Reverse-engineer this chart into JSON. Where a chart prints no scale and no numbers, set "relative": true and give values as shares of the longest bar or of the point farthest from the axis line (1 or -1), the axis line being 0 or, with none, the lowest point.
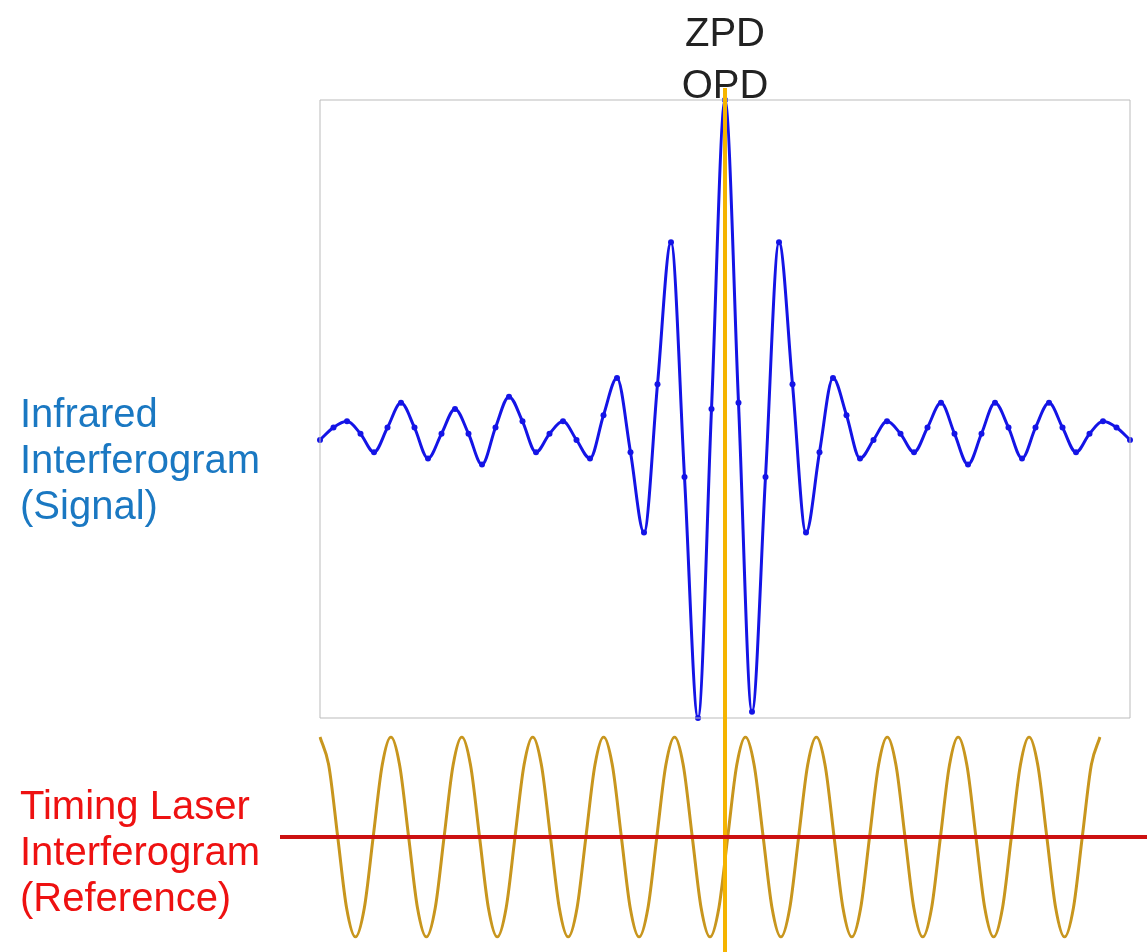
{
  "chart_data": [
    {
      "type": "line",
      "relative": true,
      "ylabel": "Infrared Interferogram (Signal)",
      "marker": "circle",
      "tick_labels": false,
      "categories": [
        null,
        null,
        null,
        null,
        null,
        null,
        null,
        null,
        null,
        null,
        null,
        null,
        null,
        null,
        null,
        null,
        null,
        null,
        null,
        null,
        null,
        null,
        null,
        null,
        null,
        null,
        null,
        null,
        null,
        null,
        null,
        null,
        null,
        null,
        null,
        null,
        null,
        null,
        null,
        null,
        null,
        null,
        null,
        null,
        null,
        null,
        null,
        null,
        null,
        null,
        null,
        null,
        null,
        null,
        null,
        null,
        null,
        null,
        null,
        null,
        null
      ],
      "series": [
        {
          "color": "#1414e6",
          "values": [
            0.45,
            0.47,
            0.48,
            0.46,
            0.43,
            0.47,
            0.51,
            0.47,
            0.42,
            0.46,
            0.5,
            0.46,
            0.41,
            0.47,
            0.52,
            0.48,
            0.43,
            0.46,
            0.48,
            0.45,
            0.42,
            0.49,
            0.55,
            0.43,
            0.3,
            0.54,
            0.77,
            0.39,
            0,
            0.5,
            1,
            0.51,
            0.01,
            0.39,
            0.77,
            0.54,
            0.3,
            0.43,
            0.55,
            0.49,
            0.42,
            0.45,
            0.48,
            0.46,
            0.43,
            0.47,
            0.51,
            0.46,
            0.41,
            0.46,
            0.51,
            0.47,
            0.42,
            0.47,
            0.51,
            0.47,
            0.43,
            0.46,
            0.48,
            0.47,
            0.45
          ]
        }
      ],
      "annotations": [
        "ZPD OPD"
      ]
    },
    {
      "type": "line",
      "relative": true,
      "ylabel": "Timing Laser Interferogram (Reference)",
      "marker": "none",
      "tick_labels": false,
      "categories": [
        null,
        null,
        null,
        null,
        null,
        null,
        null,
        null,
        null,
        null,
        null,
        null,
        null,
        null,
        null,
        null,
        null,
        null,
        null,
        null,
        null,
        null,
        null,
        null,
        null,
        null,
        null,
        null,
        null,
        null,
        null,
        null,
        null,
        null,
        null,
        null,
        null,
        null,
        null,
        null,
        null,
        null,
        null,
        null,
        null,
        null,
        null,
        null,
        null,
        null,
        null,
        null,
        null,
        null,
        null,
        null,
        null,
        null,
        null,
        null,
        null,
        null,
        null,
        null,
        null,
        null,
        null,
        null,
        null,
        null,
        null,
        null,
        null,
        null,
        null,
        null,
        null,
        null,
        null,
        null,
        null,
        null,
        null,
        null,
        null,
        null,
        null,
        null,
        null
      ],
      "series": [
        {
          "color": "#c8961e",
          "values": [
            1,
            0.71,
            0,
            -0.71,
            -1,
            -0.71,
            0,
            0.71,
            1,
            0.71,
            0,
            -0.71,
            -1,
            -0.71,
            0,
            0.71,
            1,
            0.71,
            0,
            -0.71,
            -1,
            -0.71,
            0,
            0.71,
            1,
            0.71,
            0,
            -0.71,
            -1,
            -0.71,
            0,
            0.71,
            1,
            0.71,
            0,
            -0.71,
            -1,
            -0.71,
            0,
            0.71,
            1,
            0.71,
            0,
            -0.71,
            -1,
            -0.71,
            0,
            0.71,
            1,
            0.71,
            0,
            -0.71,
            -1,
            -0.71,
            0,
            0.71,
            1,
            0.71,
            0,
            -0.71,
            -1,
            -0.71,
            0,
            0.71,
            1,
            0.71,
            0,
            -0.71,
            -1,
            -0.71,
            0,
            0.71,
            1,
            0.71,
            0,
            -0.71,
            -1,
            -0.71,
            0,
            0.71,
            1,
            0.71,
            0,
            -0.71,
            -1,
            -0.71,
            0,
            0.71,
            1
          ]
        }
      ],
      "ref_lines": [
        {
          "axis": "y",
          "value": 0,
          "color": "#cc1111"
        }
      ]
    }
  ]
}
